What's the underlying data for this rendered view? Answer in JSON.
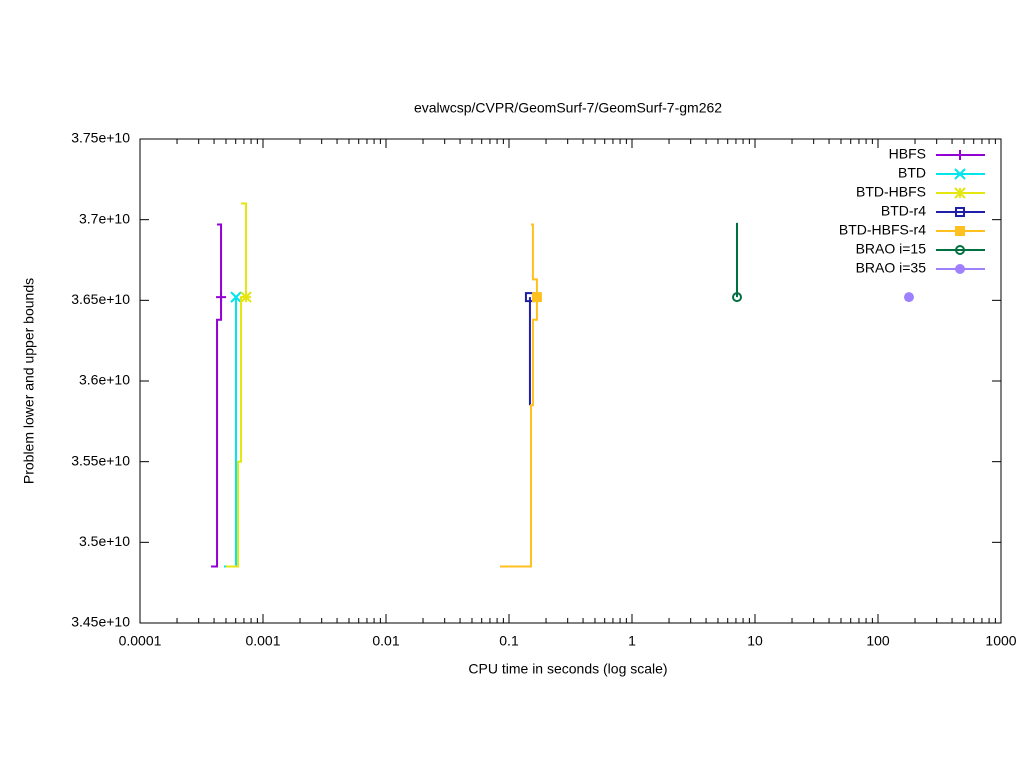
{
  "chart_data": {
    "type": "step",
    "title": "evalwcsp/CVPR/GeomSurf-7/GeomSurf-7-gm262",
    "xlabel": "CPU time in seconds (log scale)",
    "ylabel": "Problem lower and upper bounds",
    "xscale": "log",
    "xlim": [
      0.0001,
      1000
    ],
    "xticks": [
      0.0001,
      0.001,
      0.01,
      0.1,
      1,
      10,
      100,
      1000
    ],
    "ylim": [
      34500000000,
      37500000000
    ],
    "yticks": [
      {
        "value": 34500000000,
        "label": "3.45e+10"
      },
      {
        "value": 35000000000,
        "label": "3.5e+10"
      },
      {
        "value": 35500000000,
        "label": "3.55e+10"
      },
      {
        "value": 36000000000,
        "label": "3.6e+10"
      },
      {
        "value": 36500000000,
        "label": "3.65e+10"
      },
      {
        "value": 37000000000,
        "label": "3.7e+10"
      },
      {
        "value": 37500000000,
        "label": "3.75e+10"
      }
    ],
    "legend": "top-right",
    "series": [
      {
        "name": "HBFS",
        "color": "#9400d3",
        "marker": "plus",
        "x": [
          0.000378,
          0.000423,
          0.000456
        ],
        "lower": [
          34850000000,
          36380000000,
          36520000000
        ],
        "upper": [
          null,
          36970000000,
          36520000000
        ]
      },
      {
        "name": "BTD",
        "color": "#00e5ee",
        "marker": "cross",
        "x": [
          0.000482,
          0.000603
        ],
        "lower": [
          34850000000,
          36520000000
        ],
        "upper": [
          null,
          36520000000
        ]
      },
      {
        "name": "BTD-HBFS",
        "color": "#e5e510",
        "marker": "star",
        "x": [
          0.0005,
          0.000627,
          0.000663,
          0.000728
        ],
        "lower": [
          34850000000,
          35500000000,
          36520000000,
          36520000000
        ],
        "upper": [
          null,
          null,
          37100000000,
          36520000000
        ]
      },
      {
        "name": "BTD-r4",
        "color": "#1e1ea8",
        "marker": "square-open",
        "x": [
          0.148,
          0.148
        ],
        "lower": [
          35850000000,
          36520000000
        ],
        "upper": [
          null,
          36520000000
        ]
      },
      {
        "name": "BTD-HBFS-r4",
        "color": "#ffc020",
        "marker": "square",
        "x": [
          0.0845,
          0.151,
          0.1565,
          0.1687
        ],
        "lower": [
          34850000000,
          35850000000,
          36380000000,
          36520000000
        ],
        "upper": [
          null,
          36970000000,
          36630000000,
          36520000000
        ]
      },
      {
        "name": "BRAO i=15",
        "color": "#007040",
        "marker": "circle-open",
        "x": [
          7.14,
          7.14
        ],
        "lower": [
          null,
          36520000000
        ],
        "upper": [
          36980000000,
          36520000000
        ]
      },
      {
        "name": "BRAO i=35",
        "color": "#9f80ff",
        "marker": "circle",
        "x": [
          178.6
        ],
        "lower": [
          36520000000
        ],
        "upper": [
          36520000000
        ]
      }
    ]
  }
}
